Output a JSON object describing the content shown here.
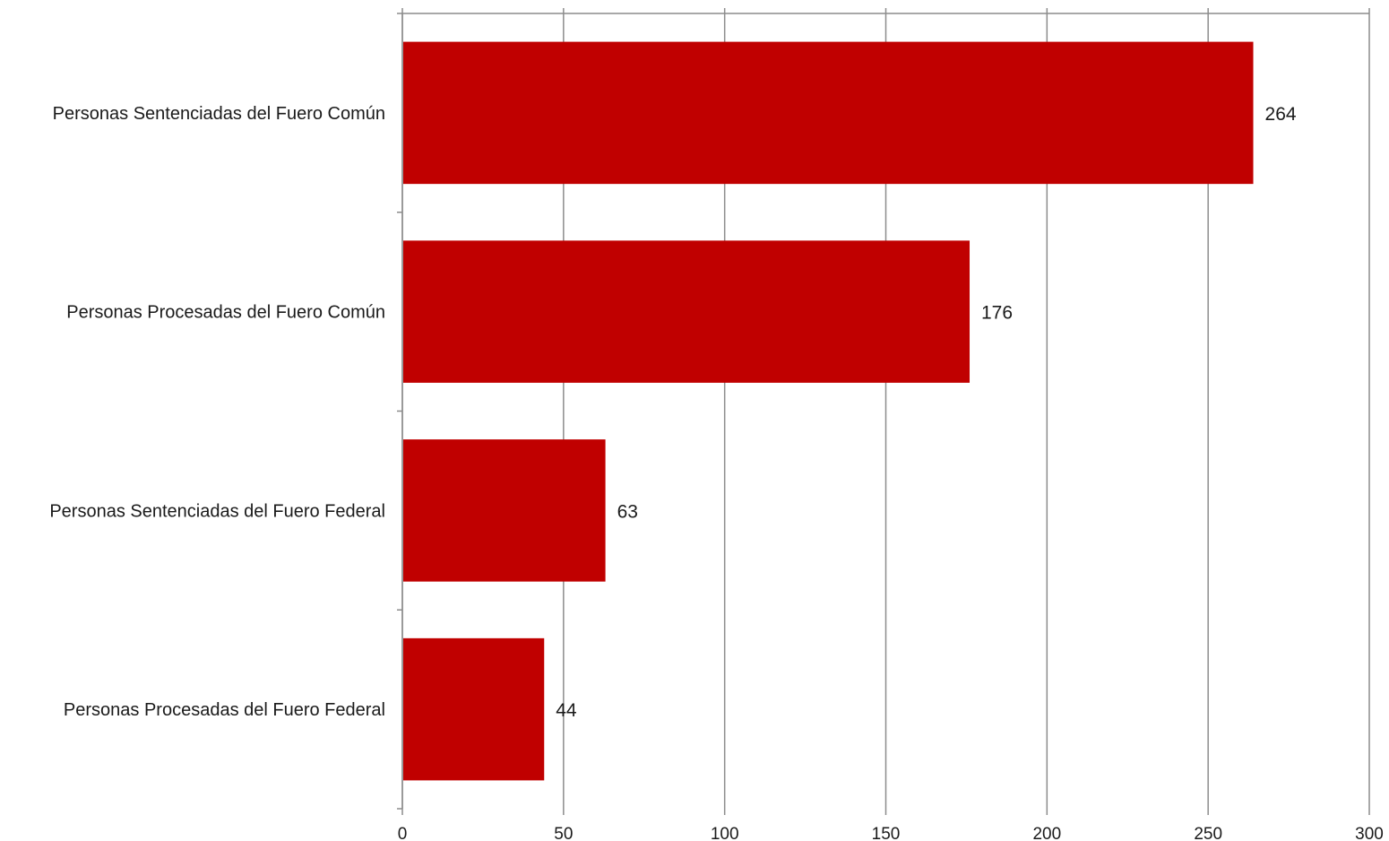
{
  "chart_data": {
    "type": "bar",
    "orientation": "horizontal",
    "categories": [
      "Personas Sentenciadas del Fuero Común",
      "Personas Procesadas del Fuero Común",
      "Personas Sentenciadas del Fuero Federal",
      "Personas Procesadas del Fuero Federal"
    ],
    "values": [
      264,
      176,
      63,
      44
    ],
    "value_labels": [
      "264",
      "176",
      "63",
      "44"
    ],
    "xlim": [
      0,
      300
    ],
    "x_ticks": [
      0,
      50,
      100,
      150,
      200,
      250,
      300
    ],
    "x_tick_labels": [
      "0",
      "50",
      "100",
      "150",
      "200",
      "250",
      "300"
    ],
    "title": "",
    "xlabel": "",
    "ylabel": "",
    "grid": "vertical",
    "legend": "none",
    "bar_color": "#C00000"
  }
}
